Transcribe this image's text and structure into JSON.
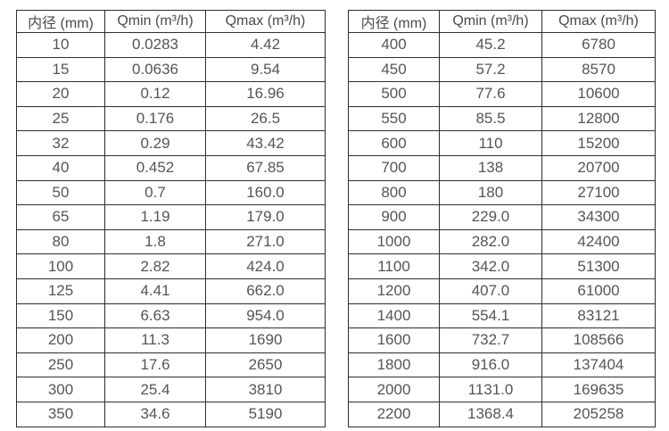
{
  "page": {
    "background": "#ffffff"
  },
  "colors": {
    "border": "#2e2e2e",
    "text": "#555555",
    "header_text": "#4a4a4a"
  },
  "tables": [
    {
      "name": "small-diameter-flow-table",
      "headers": [
        "内径 (mm)",
        "Qmin (m³/h)",
        "Qmax (m³/h)"
      ],
      "rows": [
        [
          "10",
          "0.0283",
          "4.42"
        ],
        [
          "15",
          "0.0636",
          "9.54"
        ],
        [
          "20",
          "0.12",
          "16.96"
        ],
        [
          "25",
          "0.176",
          "26.5"
        ],
        [
          "32",
          "0.29",
          "43.42"
        ],
        [
          "40",
          "0.452",
          "67.85"
        ],
        [
          "50",
          "0.7",
          "160.0"
        ],
        [
          "65",
          "1.19",
          "179.0"
        ],
        [
          "80",
          "1.8",
          "271.0"
        ],
        [
          "100",
          "2.82",
          "424.0"
        ],
        [
          "125",
          "4.41",
          "662.0"
        ],
        [
          "150",
          "6.63",
          "954.0"
        ],
        [
          "200",
          "11.3",
          "1690"
        ],
        [
          "250",
          "17.6",
          "2650"
        ],
        [
          "300",
          "25.4",
          "3810"
        ],
        [
          "350",
          "34.6",
          "5190"
        ]
      ]
    },
    {
      "name": "large-diameter-flow-table",
      "headers": [
        "内径 (mm)",
        "Qmin (m³/h)",
        "Qmax (m³/h)"
      ],
      "rows": [
        [
          "400",
          "45.2",
          "6780"
        ],
        [
          "450",
          "57.2",
          "8570"
        ],
        [
          "500",
          "77.6",
          "10600"
        ],
        [
          "550",
          "85.5",
          "12800"
        ],
        [
          "600",
          "110",
          "15200"
        ],
        [
          "700",
          "138",
          "20700"
        ],
        [
          "800",
          "180",
          "27100"
        ],
        [
          "900",
          "229.0",
          "34300"
        ],
        [
          "1000",
          "282.0",
          "42400"
        ],
        [
          "1100",
          "342.0",
          "51300"
        ],
        [
          "1200",
          "407.0",
          "61000"
        ],
        [
          "1400",
          "554.1",
          "83121"
        ],
        [
          "1600",
          "732.7",
          "108566"
        ],
        [
          "1800",
          "916.0",
          "137404"
        ],
        [
          "2000",
          "1131.0",
          "169635"
        ],
        [
          "2200",
          "1368.4",
          "205258"
        ]
      ]
    }
  ]
}
